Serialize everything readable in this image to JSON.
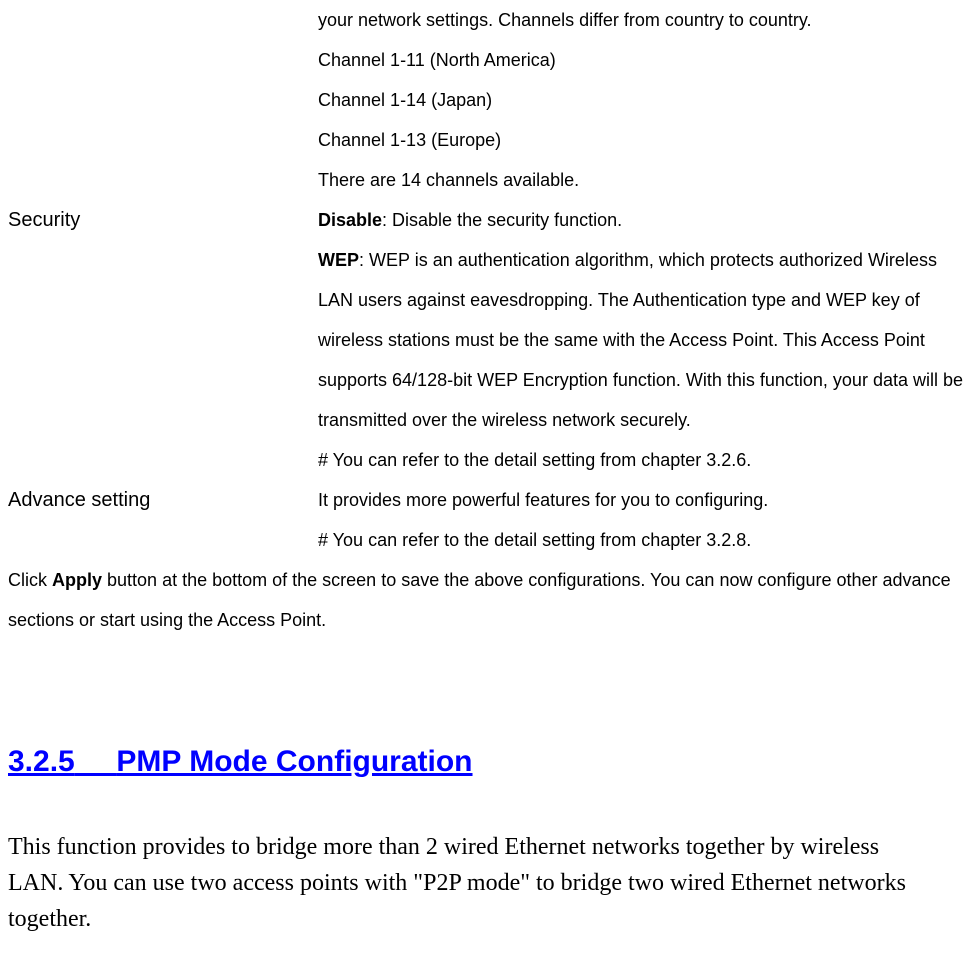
{
  "channel": {
    "lines": [
      "your network settings. Channels differ from country to country.",
      "Channel 1-11 (North America)",
      "Channel 1-14 (Japan)",
      "Channel 1-13 (Europe)",
      "There are 14 channels available."
    ]
  },
  "security": {
    "label": "Security",
    "disable_bold": "Disable",
    "disable_rest": ": Disable the security function.",
    "wep_bold": "WEP",
    "wep_rest": ": WEP is an authentication algorithm, which protects authorized Wireless LAN users against eavesdropping. The Authentication type and WEP key of wireless stations must be the same with the Access Point. This Access Point supports 64/128-bit WEP Encryption function. With this function, your data will be transmitted over the wireless network securely.",
    "ref": "# You can refer to the detail setting from chapter 3.2.6."
  },
  "advance": {
    "label": "Advance setting",
    "desc": "It provides more powerful features for you to configuring.",
    "ref": "# You can refer to the detail setting from chapter 3.2.8."
  },
  "apply_text": {
    "pre": "Click ",
    "bold": "Apply",
    "post": " button at the bottom of the screen to save the above configurations. You can now configure other advance sections or start using the Access Point."
  },
  "section": {
    "number": "3.2.5",
    "title": "PMP Mode Configuration",
    "intro": "This function provides to bridge more than 2 wired Ethernet networks together by wireless LAN. You can use two access points with \"P2P mode\" to bridge two wired Ethernet networks together."
  },
  "styles": {
    "heading_color": "#0000ff",
    "text_color": "#000000",
    "background_color": "#ffffff",
    "body_fontsize": 18,
    "label_fontsize": 20,
    "heading_fontsize": 30,
    "serif_fontsize": 24
  }
}
